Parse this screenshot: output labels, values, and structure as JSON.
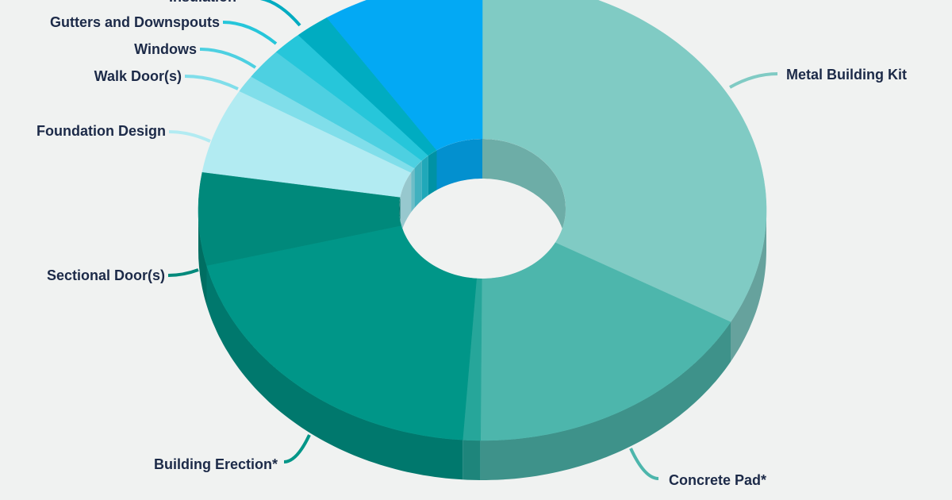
{
  "chart_data": {
    "type": "pie",
    "donut": true,
    "three_d": true,
    "categories": [
      "Metal Building Kit",
      "Concrete Pad*",
      null,
      "Building Erection*",
      "Sectional Door(s)",
      "Foundation Design",
      "Walk Door(s)",
      "Windows",
      "Gutters and Downspouts",
      "Insulation",
      null
    ],
    "values": [
      33,
      17,
      1,
      20,
      6.5,
      6,
      1.2,
      2.2,
      1.7,
      2,
      9.2
    ],
    "colors": [
      "#80cbc4",
      "#4db6ac",
      "#26a69a",
      "#009688",
      "#00897b",
      "#b2ebf2",
      "#80deea",
      "#4dd0e1",
      "#26c6da",
      "#00acc1",
      "#03a9f4"
    ]
  }
}
